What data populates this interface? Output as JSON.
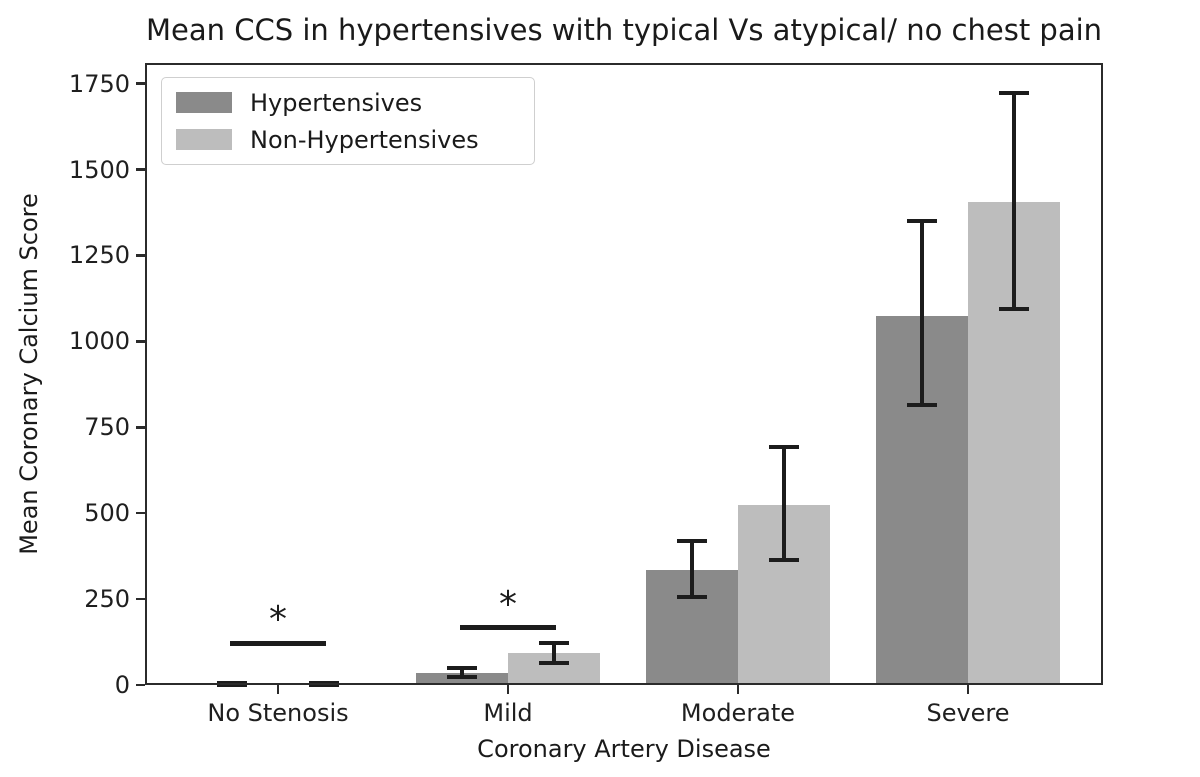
{
  "chart_data": {
    "type": "bar",
    "title": "Mean CCS in hypertensives with typical Vs atypical/ no chest pain",
    "xlabel": "Coronary Artery Disease",
    "ylabel": "Mean Coronary Calcium Score",
    "categories": [
      "No Stenosis",
      "Mild",
      "Moderate",
      "Severe"
    ],
    "series": [
      {
        "name": "Hypertensives",
        "color": "#8a8a8a",
        "values": [
          2,
          35,
          335,
          1075
        ],
        "err_low": [
          0,
          22,
          255,
          815
        ],
        "err_high": [
          5,
          50,
          420,
          1350
        ]
      },
      {
        "name": "Non-Hypertensives",
        "color": "#bdbdbd",
        "values": [
          3,
          93,
          525,
          1405
        ],
        "err_low": [
          0,
          63,
          365,
          1095
        ],
        "err_high": [
          7,
          122,
          692,
          1722
        ]
      }
    ],
    "yticks": [
      0,
      250,
      500,
      750,
      1000,
      1250,
      1500,
      1750
    ],
    "ylim": [
      0,
      1810
    ],
    "grid": false,
    "legend_position": "upper left",
    "error_bar_color": "#1c1c1c",
    "significance": [
      {
        "category_index": 0,
        "marker": "*",
        "line_y": 122
      },
      {
        "category_index": 1,
        "marker": "*",
        "line_y": 166
      }
    ]
  }
}
